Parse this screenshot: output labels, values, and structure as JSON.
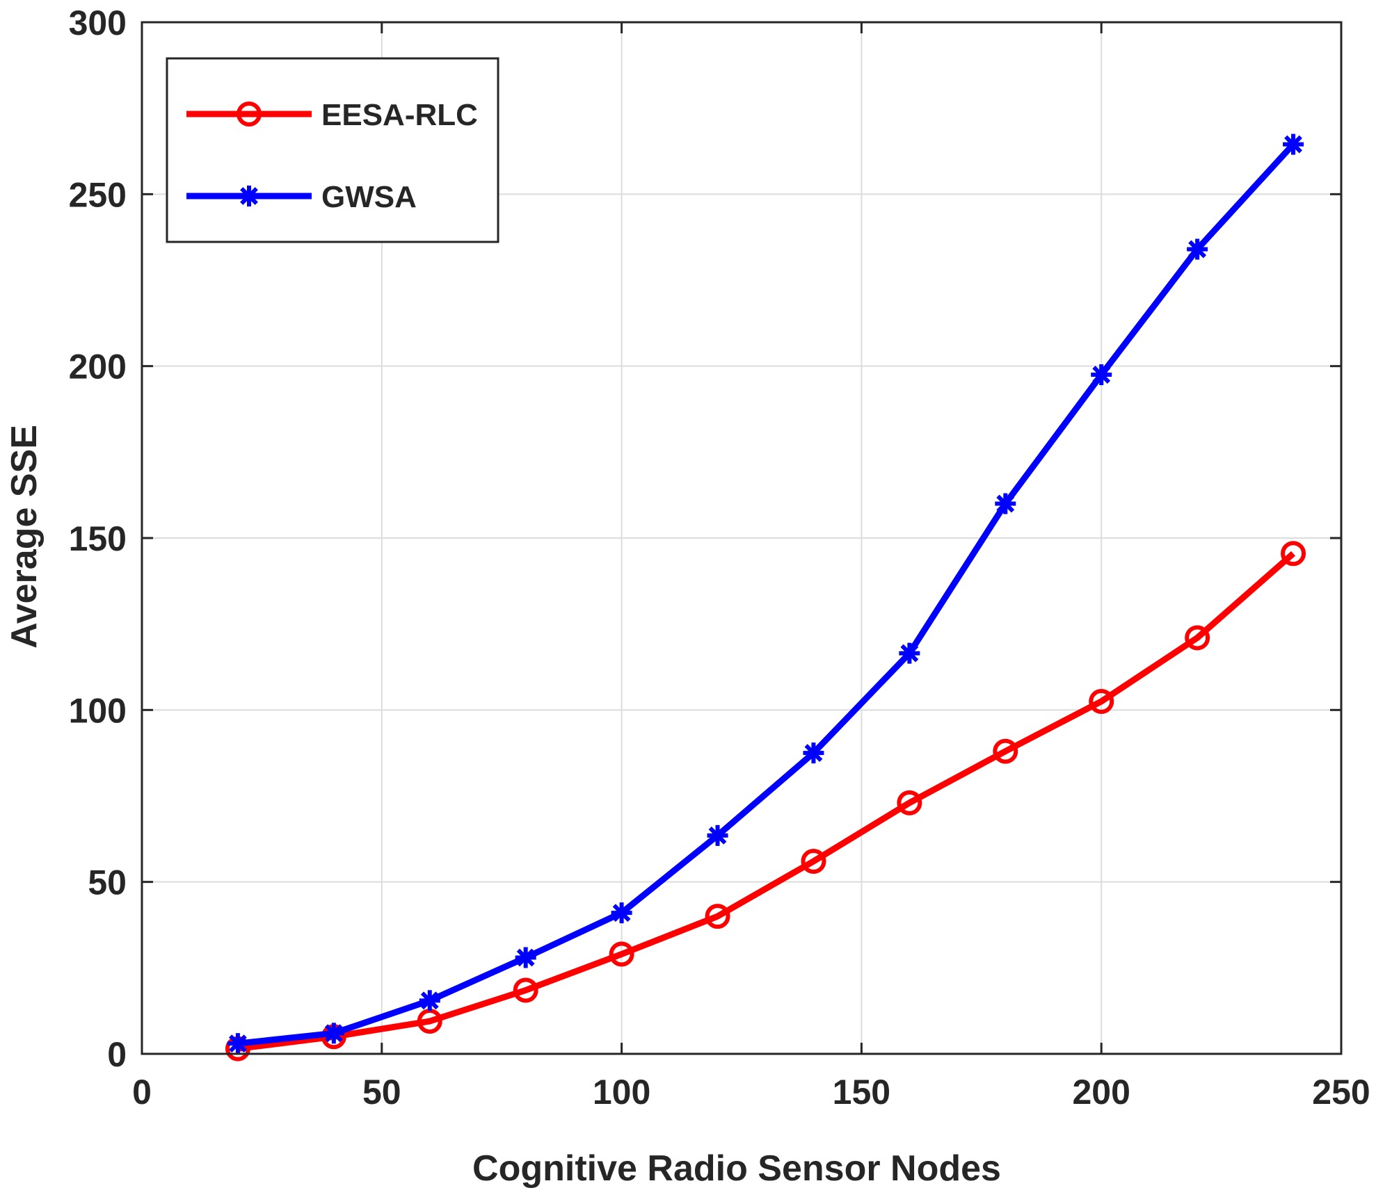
{
  "chart_data": {
    "type": "line",
    "title": "",
    "xlabel": "Cognitive Radio Sensor Nodes",
    "ylabel": "Average SSE",
    "xlim": [
      0,
      250
    ],
    "ylim": [
      0,
      300
    ],
    "xticks": [
      0,
      50,
      100,
      150,
      200,
      250
    ],
    "yticks": [
      0,
      50,
      100,
      150,
      200,
      250,
      300
    ],
    "grid": true,
    "legend_position": "top-left",
    "x": [
      20,
      40,
      60,
      80,
      100,
      120,
      140,
      160,
      180,
      200,
      220,
      240
    ],
    "series": [
      {
        "name": "EESA-RLC",
        "color": "#ff0000",
        "marker": "circle",
        "values": [
          1.5,
          5,
          9.5,
          18.5,
          29,
          40,
          56,
          73,
          88,
          102.5,
          121,
          145.5
        ]
      },
      {
        "name": "GWSA",
        "color": "#0000ff",
        "marker": "star",
        "values": [
          3,
          6,
          15.5,
          28,
          41,
          63.5,
          87.5,
          116.5,
          160,
          197.5,
          234,
          264.5
        ]
      }
    ]
  }
}
